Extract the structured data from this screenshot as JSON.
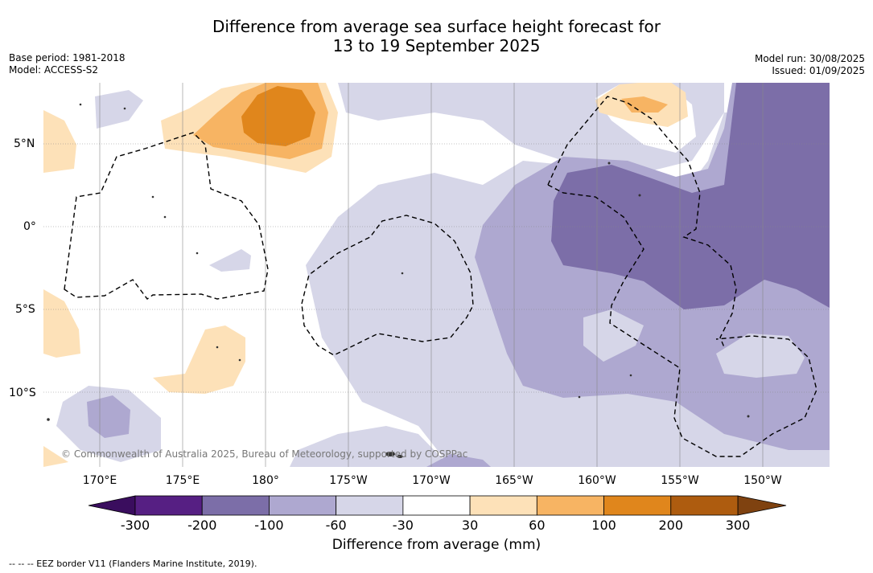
{
  "title_line1": "Difference from average sea surface height forecast for",
  "title_line2": "13 to 19 September 2025",
  "base_period": "Base period: 1981-2018",
  "model": "Model: ACCESS-S2",
  "model_run": "Model run: 30/08/2025",
  "issued": "Issued: 01/09/2025",
  "lat_labels": [
    "5°N",
    "0°",
    "5°S",
    "10°S"
  ],
  "lon_labels": [
    "170°E",
    "175°E",
    "180°",
    "175°W",
    "170°W",
    "165°W",
    "160°W",
    "155°W",
    "150°W"
  ],
  "copyright": "© Commonwealth of Australia 2025, Bureau of Meteorology, supported by COSPPac",
  "colorbar": {
    "ticks": [
      "-300",
      "-200",
      "-100",
      "-60",
      "-30",
      "30",
      "60",
      "100",
      "200",
      "300"
    ],
    "colors": [
      "#561f83",
      "#7c6ea8",
      "#aea8d0",
      "#d6d6e8",
      "#ffffff",
      "#fde1b8",
      "#f7b463",
      "#e0861c",
      "#ae5c0f"
    ],
    "under_color": "#3a0d5e",
    "over_color": "#7f4210",
    "label": "Difference from average (mm)"
  },
  "footer": "--  --  -- EEZ border V11 (Flanders Marine Institute, 2019)."
}
